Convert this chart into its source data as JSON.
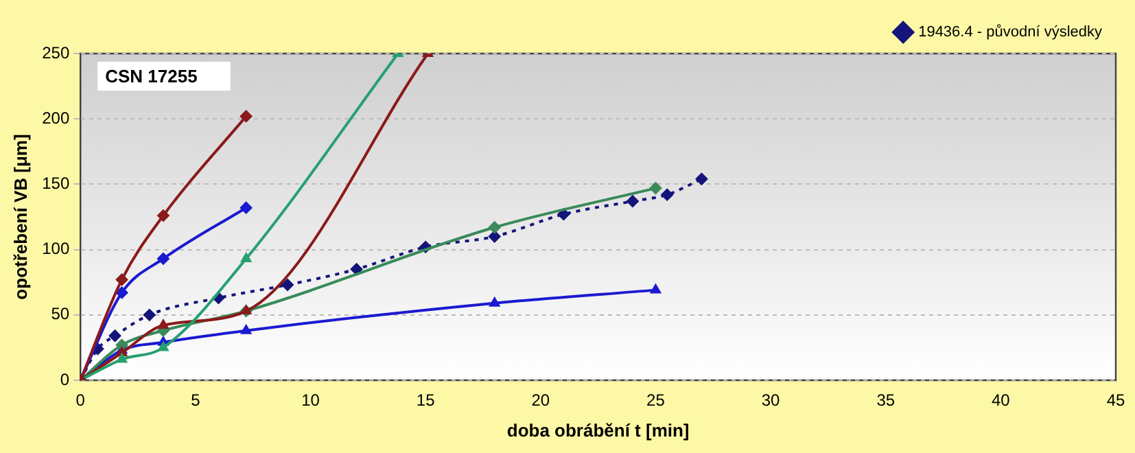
{
  "chart_data": {
    "type": "line",
    "xlabel": "doba obrábění t [min]",
    "ylabel": "opotřebení VB [μm]",
    "xlim": [
      0,
      45
    ],
    "xticks": [
      0,
      5,
      10,
      15,
      20,
      25,
      30,
      35,
      40,
      45
    ],
    "ylim": [
      0,
      250
    ],
    "yticks": [
      0,
      50,
      100,
      150,
      200,
      250
    ],
    "grid": "y",
    "legend": "top right",
    "annotations": [
      "CSN 17255"
    ],
    "series": [
      {
        "color": "#8b1a1a",
        "marker": "diamond",
        "x": [
          0,
          1.8,
          3.6,
          7.2
        ],
        "values": [
          0,
          77,
          126,
          202
        ]
      },
      {
        "color": "#1a1ad0",
        "marker": "diamond",
        "x": [
          0,
          1.8,
          3.6,
          7.2
        ],
        "values": [
          0,
          67,
          93,
          132
        ]
      },
      {
        "color": "#26a070",
        "marker": "triangle",
        "x": [
          0,
          1.8,
          3.6,
          7.2,
          13.8
        ],
        "values": [
          0,
          16,
          25,
          93,
          250
        ]
      },
      {
        "color": "#8b1a1a",
        "marker": "triangle",
        "x": [
          0,
          1.8,
          3.6,
          7.2,
          15.1
        ],
        "values": [
          0,
          21,
          42,
          53,
          250
        ]
      },
      {
        "color": "#3a8a5a",
        "marker": "diamond",
        "x": [
          0,
          1.8,
          3.6,
          7.2,
          18,
          25
        ],
        "values": [
          0,
          27,
          38,
          53,
          117,
          147
        ]
      },
      {
        "color": "#1a1ad0",
        "marker": "triangle",
        "x": [
          0,
          1.8,
          3.6,
          7.2,
          18,
          25
        ],
        "values": [
          0,
          23,
          29,
          38,
          59,
          69
        ]
      },
      {
        "name": "19436.4 - původní výsledky",
        "color": "#14147a",
        "marker": "diamond",
        "line_style": "dotted",
        "x": [
          0,
          0.75,
          1.5,
          3,
          6,
          9,
          12,
          15,
          18,
          21,
          24,
          25.5,
          27
        ],
        "values": [
          0,
          24,
          34,
          50,
          63,
          73,
          85,
          102,
          110,
          127,
          137,
          142,
          154
        ]
      }
    ]
  }
}
